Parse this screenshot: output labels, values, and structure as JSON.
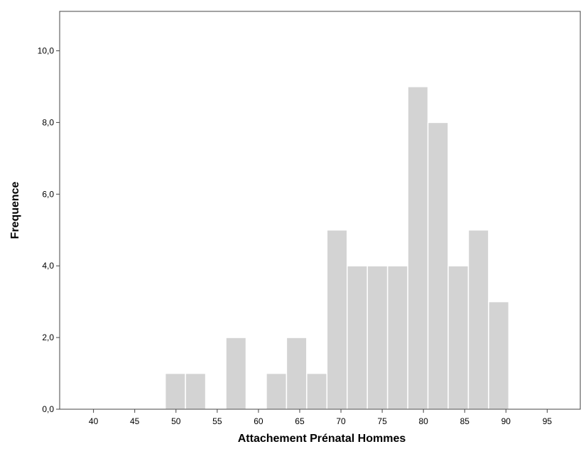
{
  "chart_data": {
    "type": "bar",
    "subtype": "histogram",
    "xlabel": "Attachement Prénatal Hommes",
    "ylabel": "Frequence",
    "x_ticks": [
      "40",
      "45",
      "50",
      "55",
      "60",
      "65",
      "70",
      "75",
      "80",
      "85",
      "90",
      "95"
    ],
    "x_tick_values": [
      40,
      45,
      50,
      55,
      60,
      65,
      70,
      75,
      80,
      85,
      90,
      95
    ],
    "y_ticks": [
      "0,0",
      "2,0",
      "4,0",
      "6,0",
      "8,0",
      "10,0"
    ],
    "y_tick_values": [
      0,
      2,
      4,
      6,
      8,
      10
    ],
    "xlim": [
      35.9,
      99.1
    ],
    "ylim": [
      0,
      11.1
    ],
    "bin_width": 2.45,
    "bins": [
      {
        "x_start": 48.7,
        "x_end": 51.15,
        "count": 1
      },
      {
        "x_start": 51.15,
        "x_end": 53.6,
        "count": 1
      },
      {
        "x_start": 53.6,
        "x_end": 56.05,
        "count": 0
      },
      {
        "x_start": 56.05,
        "x_end": 58.5,
        "count": 2
      },
      {
        "x_start": 58.5,
        "x_end": 60.95,
        "count": 0
      },
      {
        "x_start": 60.95,
        "x_end": 63.4,
        "count": 1
      },
      {
        "x_start": 63.4,
        "x_end": 65.85,
        "count": 2
      },
      {
        "x_start": 65.85,
        "x_end": 68.3,
        "count": 1
      },
      {
        "x_start": 68.3,
        "x_end": 70.75,
        "count": 5
      },
      {
        "x_start": 70.75,
        "x_end": 73.2,
        "count": 4
      },
      {
        "x_start": 73.2,
        "x_end": 75.65,
        "count": 4
      },
      {
        "x_start": 75.65,
        "x_end": 78.1,
        "count": 4
      },
      {
        "x_start": 78.1,
        "x_end": 80.55,
        "count": 9
      },
      {
        "x_start": 80.55,
        "x_end": 83.0,
        "count": 8
      },
      {
        "x_start": 83.0,
        "x_end": 85.45,
        "count": 4
      },
      {
        "x_start": 85.45,
        "x_end": 87.9,
        "count": 5
      },
      {
        "x_start": 87.9,
        "x_end": 90.35,
        "count": 3
      }
    ],
    "bar_color": "#d3d3d3",
    "bar_edge_color": "#ffffff",
    "grid": false,
    "legend": "none"
  }
}
